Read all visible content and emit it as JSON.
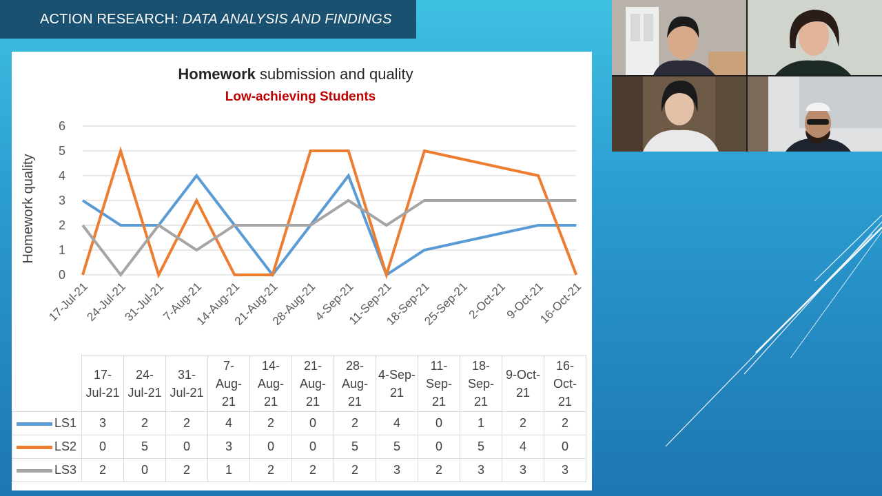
{
  "header": {
    "title_main": "ACTION RESEARCH: ",
    "title_sub": "DATA ANALYSIS AND FINDINGS"
  },
  "colors": {
    "LS1": "#5b9bd5",
    "LS2": "#ed7d31",
    "LS3": "#a5a5a5",
    "subtitle": "#c00000",
    "header_bg": "#1a5170"
  },
  "chart_data": {
    "type": "line",
    "title_bold": "Homework",
    "title_rest": " submission and quality",
    "subtitle": "Low-achieving Students",
    "ylabel": "Homework quality",
    "xlabel": "",
    "ylim": [
      0,
      6
    ],
    "yticks": [
      "0",
      "1",
      "2",
      "3",
      "4",
      "5",
      "6"
    ],
    "categories": [
      "17-Jul-21",
      "24-Jul-21",
      "31-Jul-21",
      "7-Aug-21",
      "14-Aug-21",
      "21-Aug-21",
      "28-Aug-21",
      "4-Sep-21",
      "11-Sep-21",
      "18-Sep-21",
      "25-Sep-21",
      "2-Oct-21",
      "9-Oct-21",
      "16-Oct-21"
    ],
    "series": [
      {
        "name": "LS1",
        "values": [
          3,
          2,
          2,
          4,
          2,
          0,
          2,
          4,
          0,
          1,
          null,
          null,
          2,
          2
        ]
      },
      {
        "name": "LS2",
        "values": [
          0,
          5,
          0,
          3,
          0,
          0,
          5,
          5,
          0,
          5,
          null,
          null,
          4,
          0
        ]
      },
      {
        "name": "LS3",
        "values": [
          2,
          0,
          2,
          1,
          2,
          2,
          2,
          3,
          2,
          3,
          null,
          null,
          3,
          3
        ]
      }
    ],
    "grid": true,
    "legend": "data-table"
  },
  "table": {
    "headers": [
      [
        "17-",
        "Jul-21"
      ],
      [
        "24-",
        "Jul-21"
      ],
      [
        "31-",
        "Jul-21"
      ],
      [
        "7-",
        "Aug-",
        "21"
      ],
      [
        "14-",
        "Aug-",
        "21"
      ],
      [
        "21-",
        "Aug-",
        "21"
      ],
      [
        "28-",
        "Aug-",
        "21"
      ],
      [
        "4-Sep-",
        "21"
      ],
      [
        "11-",
        "Sep-",
        "21"
      ],
      [
        "18-",
        "Sep-",
        "21"
      ],
      [
        "9-Oct-",
        "21"
      ],
      [
        "16-",
        "Oct-",
        "21"
      ]
    ],
    "rows": [
      {
        "name": "LS1",
        "values": [
          "3",
          "2",
          "2",
          "4",
          "2",
          "0",
          "2",
          "4",
          "0",
          "1",
          "2",
          "2"
        ]
      },
      {
        "name": "LS2",
        "values": [
          "0",
          "5",
          "0",
          "3",
          "0",
          "0",
          "5",
          "5",
          "0",
          "5",
          "4",
          "0"
        ]
      },
      {
        "name": "LS3",
        "values": [
          "2",
          "0",
          "2",
          "1",
          "2",
          "2",
          "2",
          "3",
          "2",
          "3",
          "3",
          "3"
        ]
      }
    ]
  },
  "participants": [
    {
      "name": "participant-1"
    },
    {
      "name": "participant-2"
    },
    {
      "name": "participant-3"
    },
    {
      "name": "participant-4"
    }
  ]
}
